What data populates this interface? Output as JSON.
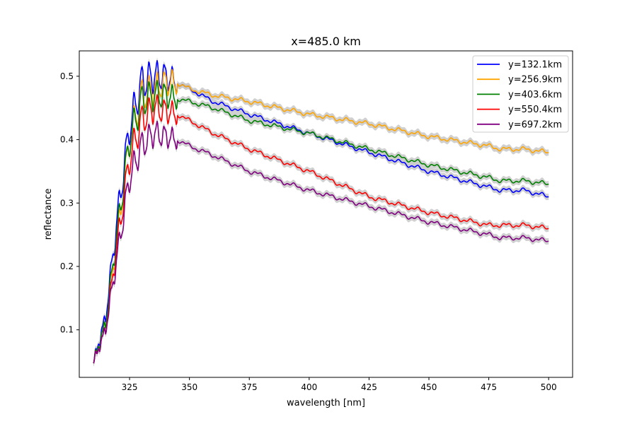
{
  "chart_data": {
    "type": "line",
    "title": "x=485.0 km",
    "xlabel": "wavelength [nm]",
    "ylabel": "reflectance",
    "xlim": [
      304,
      510
    ],
    "ylim": [
      0.025,
      0.54
    ],
    "xticks": [
      325,
      350,
      375,
      400,
      425,
      450,
      475,
      500
    ],
    "yticks": [
      0.1,
      0.2,
      0.3,
      0.4,
      0.5
    ],
    "xtick_labels": [
      "325",
      "350",
      "375",
      "400",
      "425",
      "450",
      "475",
      "500"
    ],
    "ytick_labels": [
      "0.1",
      "0.2",
      "0.3",
      "0.4",
      "0.5"
    ],
    "grid": false,
    "legend_position": "top-right",
    "uncertainty_band_color": "#c8c8c8",
    "series": [
      {
        "name": "y=132.1km",
        "color": "#0000ff",
        "x": [
          310,
          315,
          320,
          325,
          330,
          335,
          340,
          345,
          350,
          360,
          375,
          400,
          425,
          450,
          475,
          480,
          490,
          500
        ],
        "y": [
          0.05,
          0.12,
          0.28,
          0.42,
          0.49,
          0.5,
          0.5,
          0.49,
          0.48,
          0.46,
          0.44,
          0.41,
          0.38,
          0.35,
          0.325,
          0.32,
          0.32,
          0.31
        ]
      },
      {
        "name": "y=256.9km",
        "color": "#ffa500",
        "x": [
          310,
          315,
          320,
          325,
          330,
          335,
          340,
          345,
          350,
          360,
          375,
          400,
          425,
          450,
          475,
          480,
          490,
          500
        ],
        "y": [
          0.05,
          0.11,
          0.25,
          0.4,
          0.47,
          0.48,
          0.49,
          0.49,
          0.48,
          0.47,
          0.46,
          0.44,
          0.425,
          0.405,
          0.39,
          0.385,
          0.385,
          0.38
        ]
      },
      {
        "name": "y=403.6km",
        "color": "#008000",
        "x": [
          310,
          315,
          320,
          325,
          330,
          335,
          340,
          345,
          350,
          360,
          375,
          400,
          425,
          450,
          475,
          480,
          490,
          500
        ],
        "y": [
          0.05,
          0.11,
          0.26,
          0.4,
          0.46,
          0.47,
          0.47,
          0.465,
          0.46,
          0.45,
          0.43,
          0.41,
          0.385,
          0.36,
          0.34,
          0.335,
          0.335,
          0.33
        ]
      },
      {
        "name": "y=550.4km",
        "color": "#ff0000",
        "x": [
          310,
          315,
          320,
          325,
          330,
          335,
          340,
          345,
          350,
          360,
          375,
          400,
          425,
          450,
          475,
          480,
          490,
          500
        ],
        "y": [
          0.05,
          0.1,
          0.24,
          0.37,
          0.43,
          0.45,
          0.445,
          0.44,
          0.43,
          0.41,
          0.385,
          0.35,
          0.31,
          0.285,
          0.265,
          0.265,
          0.265,
          0.26
        ]
      },
      {
        "name": "y=697.2km",
        "color": "#800080",
        "x": [
          310,
          315,
          320,
          325,
          330,
          335,
          340,
          345,
          350,
          360,
          375,
          400,
          425,
          450,
          475,
          480,
          490,
          500
        ],
        "y": [
          0.05,
          0.1,
          0.22,
          0.34,
          0.39,
          0.41,
          0.405,
          0.4,
          0.39,
          0.375,
          0.35,
          0.32,
          0.295,
          0.27,
          0.25,
          0.245,
          0.245,
          0.24
        ]
      }
    ]
  }
}
